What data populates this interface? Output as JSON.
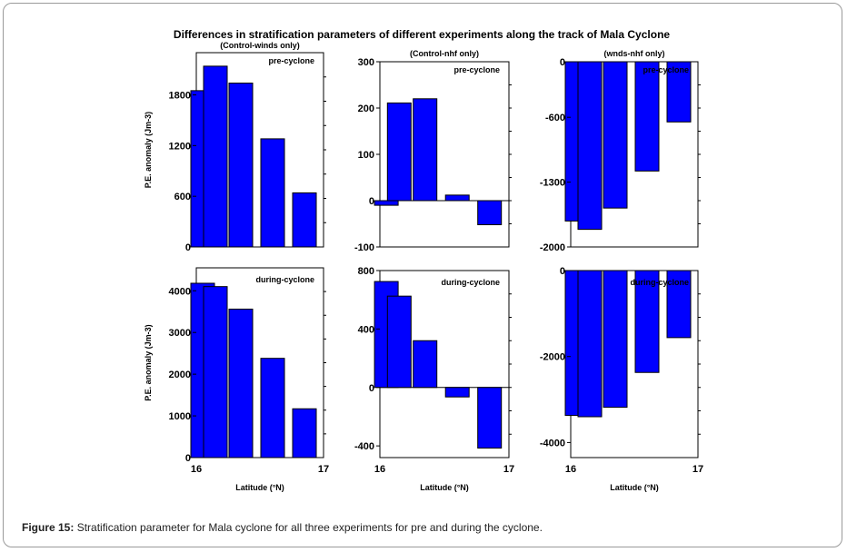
{
  "figure": {
    "title": "Differences in stratification parameters of different experiments along the track of Mala Cyclone",
    "caption_label": "Figure 15:",
    "caption_text": " Stratification parameter for Mala cyclone for all three experiments for pre and during the cyclone.",
    "bar_color": "#0000ff"
  },
  "chart_data": [
    {
      "type": "bar",
      "panel": "top-left",
      "subtitle": "(Control-winds only)",
      "annotation": "pre-cyclone",
      "ylabel": "P.E. anomaly (Jm-3)",
      "xlabel": "",
      "ylim": [
        0,
        2300
      ],
      "yticks": [
        "0",
        "600",
        "1200",
        "1800"
      ],
      "xlim": [
        16,
        17
      ],
      "xticks": [],
      "x": [
        16.05,
        16.15,
        16.35,
        16.6,
        16.85
      ],
      "values": [
        1850,
        2140,
        1940,
        1280,
        640
      ]
    },
    {
      "type": "bar",
      "panel": "top-middle",
      "subtitle": "(Control-nhf only)",
      "annotation": "pre-cyclone",
      "ylabel": "",
      "xlabel": "",
      "ylim": [
        -100,
        300
      ],
      "yticks": [
        "-100",
        "0",
        "100",
        "200",
        "300"
      ],
      "xlim": [
        16,
        17
      ],
      "xticks": [],
      "x": [
        16.05,
        16.15,
        16.35,
        16.6,
        16.85
      ],
      "values": [
        -10,
        211,
        220,
        12,
        -52
      ]
    },
    {
      "type": "bar",
      "panel": "top-right",
      "subtitle": "(wnds-nhf only)",
      "annotation": "pre-cyclone",
      "ylabel": "",
      "xlabel": "",
      "ylim": [
        -2000,
        0
      ],
      "yticks": [
        "-2000",
        "-1300",
        "-600",
        "0"
      ],
      "xlim": [
        16,
        17
      ],
      "xticks": [],
      "x": [
        16.05,
        16.15,
        16.35,
        16.6,
        16.85
      ],
      "values": [
        -1720,
        -1810,
        -1580,
        -1180,
        -650
      ]
    },
    {
      "type": "bar",
      "panel": "bottom-left",
      "subtitle": "",
      "annotation": "during-cyclone",
      "ylabel": "P.E. anomaly (Jm-3)",
      "xlabel": "Latitude (°N)",
      "ylim": [
        0,
        4550
      ],
      "yticks": [
        "0",
        "1000",
        "2000",
        "3000",
        "4000"
      ],
      "xlim": [
        16,
        17
      ],
      "xticks": [
        "16",
        "17"
      ],
      "x": [
        16.05,
        16.15,
        16.35,
        16.6,
        16.85
      ],
      "values": [
        4180,
        4100,
        3560,
        2380,
        1170
      ]
    },
    {
      "type": "bar",
      "panel": "bottom-middle",
      "subtitle": "",
      "annotation": "during-cyclone",
      "ylabel": "",
      "xlabel": "Latitude (°N)",
      "ylim": [
        -480,
        800
      ],
      "yticks": [
        "-400",
        "0",
        "400",
        "800"
      ],
      "xlim": [
        16,
        17
      ],
      "xticks": [
        "16",
        "17"
      ],
      "x": [
        16.05,
        16.15,
        16.35,
        16.6,
        16.85
      ],
      "values": [
        725,
        625,
        320,
        -65,
        -415
      ]
    },
    {
      "type": "bar",
      "panel": "bottom-right",
      "subtitle": "",
      "annotation": "during-cyclone",
      "ylabel": "",
      "xlabel": "Latitude (°N)",
      "ylim": [
        -4350,
        0
      ],
      "yticks": [
        "-4000",
        "-2000",
        "0"
      ],
      "xlim": [
        16,
        17
      ],
      "xticks": [
        "16",
        "17"
      ],
      "x": [
        16.05,
        16.15,
        16.35,
        16.6,
        16.85
      ],
      "values": [
        -3370,
        -3400,
        -3180,
        -2370,
        -1560
      ]
    }
  ]
}
